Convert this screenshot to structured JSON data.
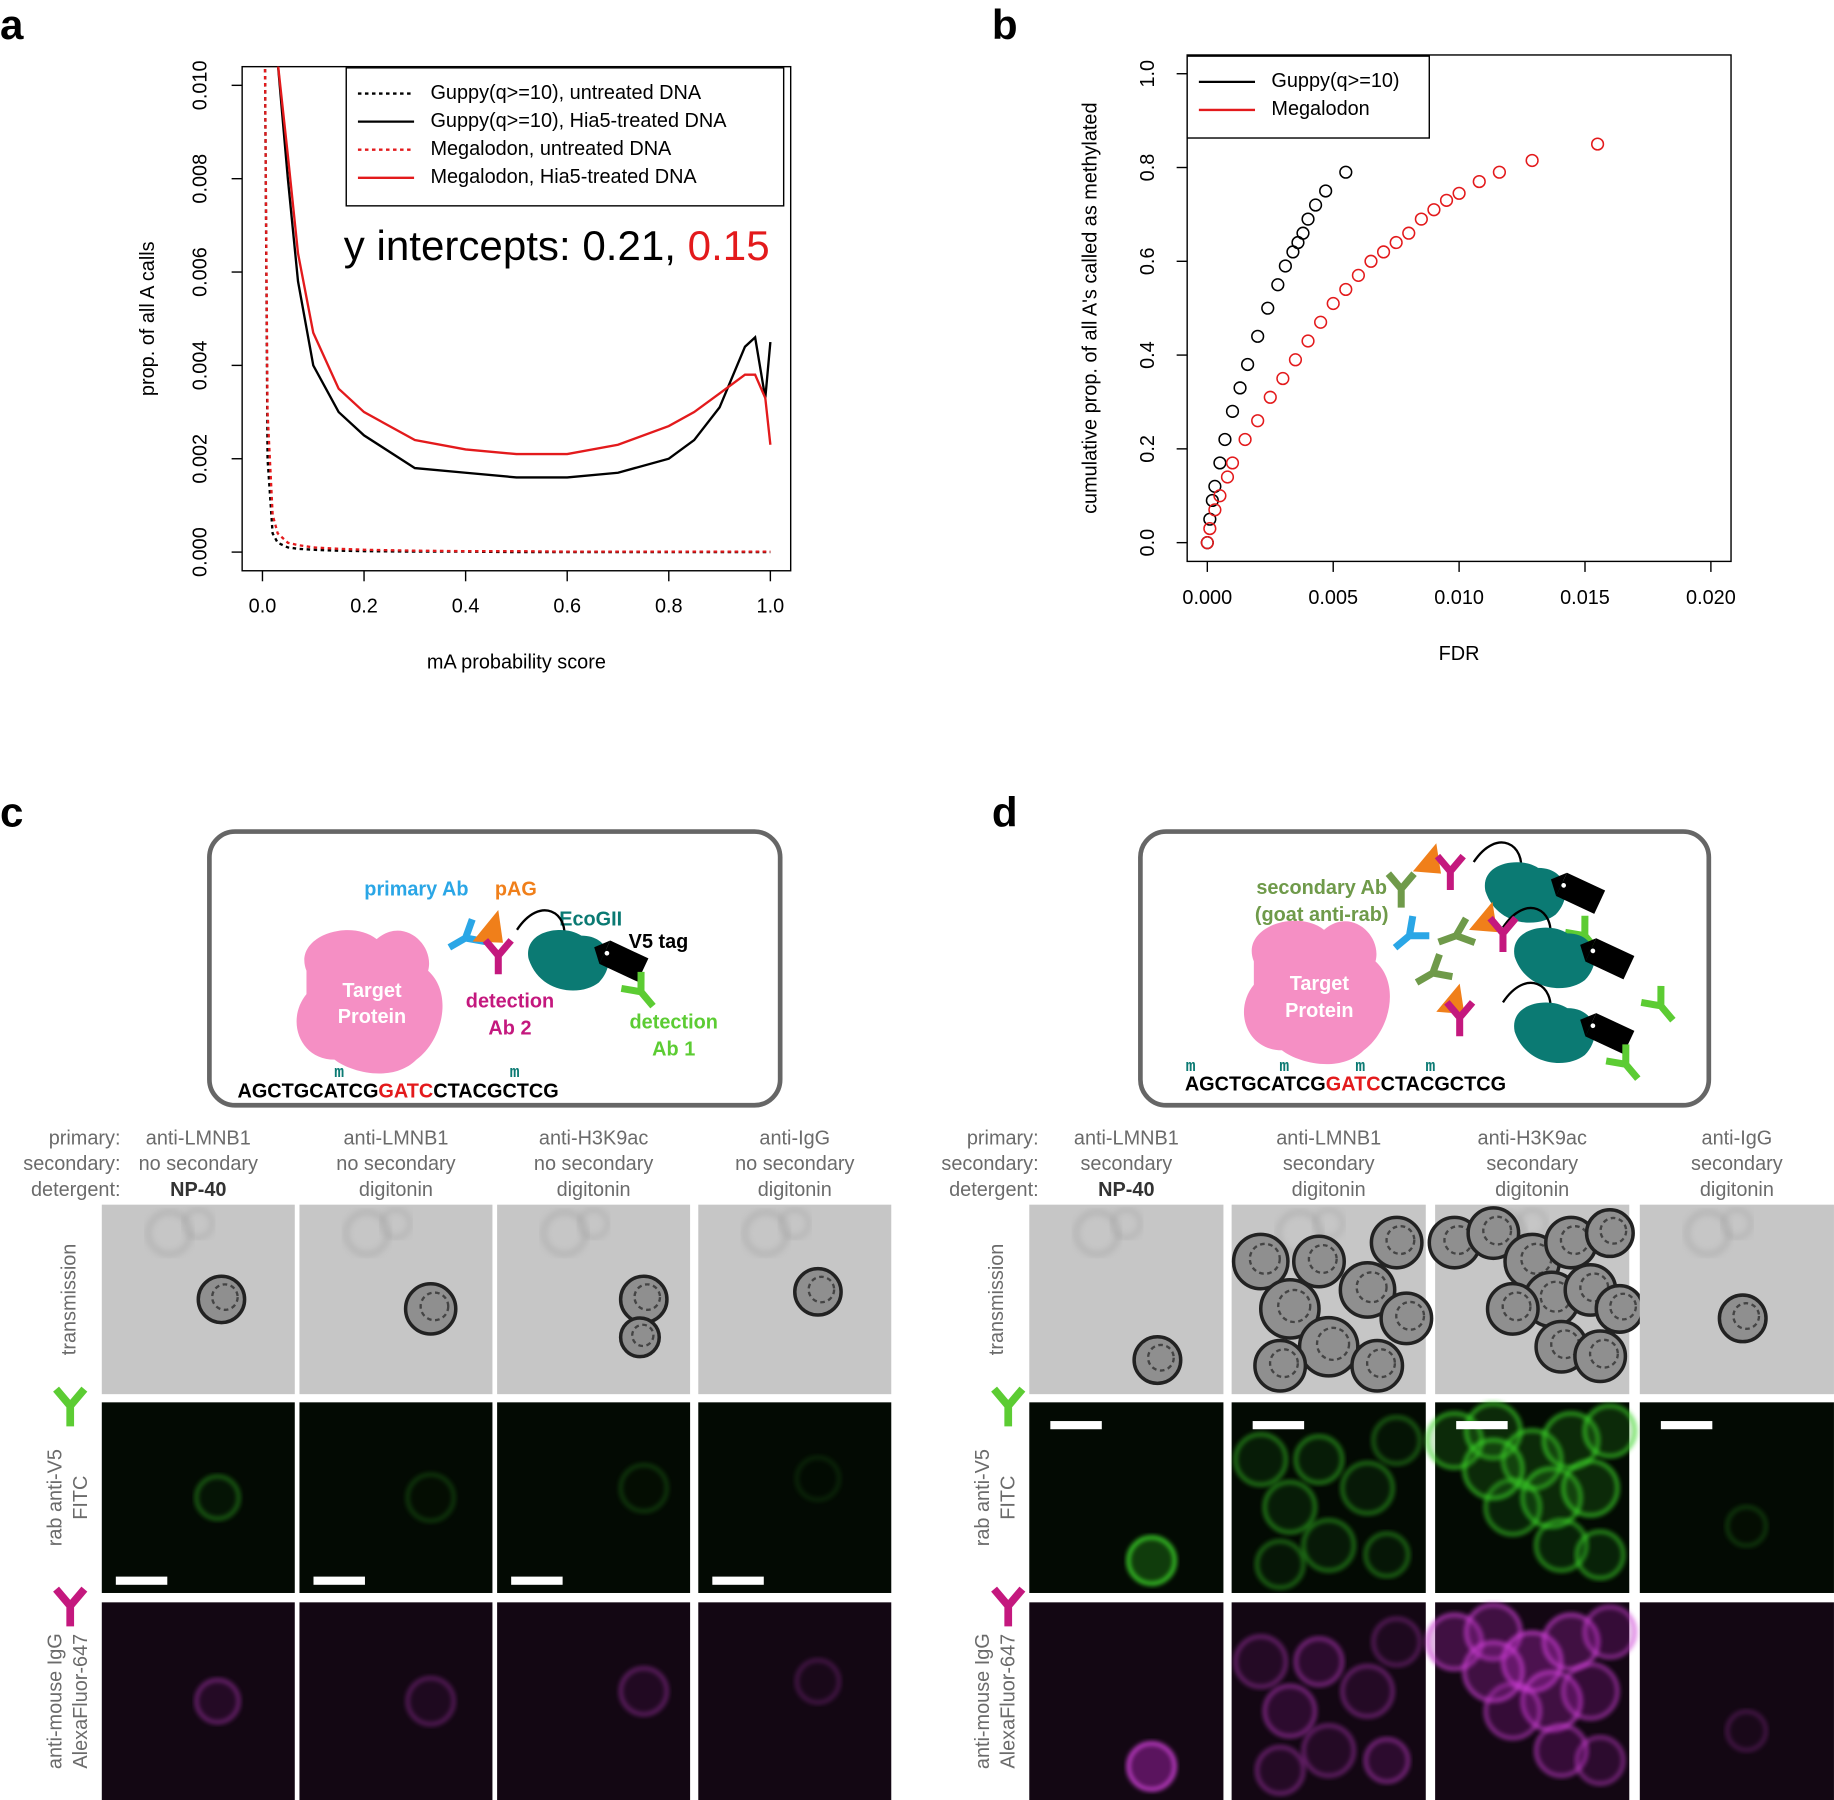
{
  "chart_data": [
    {
      "type": "line",
      "panel_label": "a",
      "xlabel": "mA probability score",
      "ylabel": "prop. of all A calls",
      "x": [
        0.005,
        0.01,
        0.02,
        0.03,
        0.05,
        0.07,
        0.1,
        0.15,
        0.2,
        0.3,
        0.4,
        0.5,
        0.6,
        0.7,
        0.8,
        0.85,
        0.9,
        0.95,
        0.97,
        0.99,
        1.0
      ],
      "xlim": [
        -0.04,
        1.04
      ],
      "xticks": [
        {
          "value": 0,
          "label": "0.0"
        },
        0.2,
        0.4,
        0.6,
        0.8,
        {
          "value": 1,
          "label": "1.0"
        }
      ],
      "ylim": [
        -0.0004,
        0.0104
      ],
      "yticks": [
        {
          "value": 0,
          "label": "0.000"
        },
        0.002,
        0.004,
        0.006,
        0.008,
        {
          "value": 0.01,
          "label": "0.010"
        }
      ],
      "legend": "top-right",
      "series": [
        {
          "name": "Guppy(q>=10), untreated DNA",
          "color": "#000000",
          "linestyle": "dotted",
          "values": [
            0.0105,
            0.002,
            0.0004,
            0.0002,
            0.0001,
            7e-05,
            5e-05,
            3e-05,
            2e-05,
            1e-05,
            1e-05,
            0,
            0,
            0,
            0,
            0,
            0,
            0,
            0,
            0,
            0
          ]
        },
        {
          "name": "Guppy(q>=10), Hia5-treated DNA",
          "color": "#000000",
          "linestyle": "solid",
          "values": [
            null,
            null,
            null,
            0.0105,
            0.008,
            0.0058,
            0.004,
            0.003,
            0.0025,
            0.0018,
            0.0017,
            0.0016,
            0.0016,
            0.0017,
            0.002,
            0.0024,
            0.0031,
            0.0044,
            0.0046,
            0.0033,
            0.0045
          ]
        },
        {
          "name": "Megalodon, untreated DNA",
          "color": "#e31a1c",
          "linestyle": "dotted",
          "values": [
            0.0105,
            0.003,
            0.0008,
            0.0004,
            0.0002,
            0.00015,
            0.0001,
            7e-05,
            5e-05,
            3e-05,
            2e-05,
            2e-05,
            1e-05,
            1e-05,
            1e-05,
            1e-05,
            1e-05,
            1e-05,
            1e-05,
            1e-05,
            1e-05
          ]
        },
        {
          "name": "Megalodon, Hia5-treated DNA",
          "color": "#e31a1c",
          "linestyle": "solid",
          "values": [
            null,
            null,
            null,
            0.0105,
            0.0085,
            0.0064,
            0.0047,
            0.0035,
            0.003,
            0.0024,
            0.0022,
            0.0021,
            0.0021,
            0.0023,
            0.0027,
            0.003,
            0.0034,
            0.0038,
            0.0038,
            0.0033,
            0.0023
          ]
        }
      ],
      "annotation": [
        {
          "text": "y intercepts: 0.21,",
          "color": "#000000"
        },
        {
          "text": "0.15",
          "color": "#e31a1c"
        }
      ]
    },
    {
      "type": "scatter",
      "panel_label": "b",
      "xlabel": "FDR",
      "ylabel": "cumulative prop. of all A's called as methylated",
      "xlim": [
        -0.0008,
        0.0208
      ],
      "xticks": [
        {
          "value": 0,
          "label": "0.000"
        },
        0.005,
        {
          "value": 0.01,
          "label": "0.010"
        },
        0.015,
        {
          "value": 0.02,
          "label": "0.020"
        }
      ],
      "ylim": [
        -0.04,
        1.04
      ],
      "yticks": [
        {
          "value": 0,
          "label": "0.0"
        },
        0.2,
        0.4,
        0.6,
        0.8,
        {
          "value": 1,
          "label": "1.0"
        }
      ],
      "legend": "top-left",
      "series": [
        {
          "name": "Guppy(q>=10)",
          "color": "#000000",
          "x": [
            0,
            0.0001,
            0.0002,
            0.0003,
            0.0005,
            0.0007,
            0.001,
            0.0013,
            0.0016,
            0.002,
            0.0024,
            0.0028,
            0.0031,
            0.0034,
            0.0036,
            0.0038,
            0.004,
            0.0043,
            0.0047,
            0.0055
          ],
          "values": [
            0,
            0.05,
            0.09,
            0.12,
            0.17,
            0.22,
            0.28,
            0.33,
            0.38,
            0.44,
            0.5,
            0.55,
            0.59,
            0.62,
            0.64,
            0.66,
            0.69,
            0.72,
            0.75,
            0.79
          ]
        },
        {
          "name": "Megalodon",
          "color": "#e31a1c",
          "x": [
            0,
            0.0001,
            0.0003,
            0.0005,
            0.0008,
            0.001,
            0.0015,
            0.002,
            0.0025,
            0.003,
            0.0035,
            0.004,
            0.0045,
            0.005,
            0.0055,
            0.006,
            0.0065,
            0.007,
            0.0075,
            0.008,
            0.0085,
            0.009,
            0.0095,
            0.01,
            0.0108,
            0.0116,
            0.0129,
            0.0155
          ],
          "values": [
            0,
            0.03,
            0.07,
            0.1,
            0.14,
            0.17,
            0.22,
            0.26,
            0.31,
            0.35,
            0.39,
            0.43,
            0.47,
            0.51,
            0.54,
            0.57,
            0.6,
            0.62,
            0.64,
            0.66,
            0.69,
            0.71,
            0.73,
            0.745,
            0.77,
            0.79,
            0.815,
            0.85
          ]
        }
      ]
    }
  ],
  "panel_c": {
    "label": "c",
    "diagram": {
      "primary_ab": "primary Ab",
      "pag": "pAG",
      "ecogii": "EcoGII",
      "v5_tag": "V5 tag",
      "target_protein": [
        "Target",
        "Protein"
      ],
      "detection_ab2": [
        "detection",
        "Ab 2"
      ],
      "detection_ab1": [
        "detection",
        "Ab 1"
      ],
      "methyl_mark": "m",
      "sequence": [
        "AGCTGCATCG",
        "GATC",
        "CTACGCTCG"
      ]
    },
    "condition_labels": [
      "primary:",
      "secondary:",
      "detergent:"
    ],
    "columns": [
      [
        "anti-LMNB1",
        "no secondary",
        "NP-40"
      ],
      [
        "anti-LMNB1",
        "no secondary",
        "digitonin"
      ],
      [
        "anti-H3K9ac",
        "no secondary",
        "digitonin"
      ],
      [
        "anti-IgG",
        "no secondary",
        "digitonin"
      ]
    ],
    "row_labels": [
      [
        "transmission"
      ],
      [
        "rab anti-V5",
        "FITC"
      ],
      [
        "anti-mouse IgG",
        "AlexaFluor-647"
      ]
    ]
  },
  "panel_d": {
    "label": "d",
    "diagram": {
      "secondary_ab": [
        "secondary Ab",
        "(goat anti-rab)"
      ],
      "target_protein": [
        "Target",
        "Protein"
      ],
      "methyl_mark": "m",
      "sequence": [
        "AGCTGCATCG",
        "GATC",
        "CTACGCTCG"
      ]
    },
    "condition_labels": [
      "primary:",
      "secondary:",
      "detergent:"
    ],
    "columns": [
      [
        "anti-LMNB1",
        "secondary",
        "NP-40"
      ],
      [
        "anti-LMNB1",
        "secondary",
        "digitonin"
      ],
      [
        "anti-H3K9ac",
        "secondary",
        "digitonin"
      ],
      [
        "anti-IgG",
        "secondary",
        "digitonin"
      ]
    ],
    "row_labels": [
      [
        "transmission"
      ],
      [
        "rab anti-V5",
        "FITC"
      ],
      [
        "anti-mouse IgG",
        "AlexaFluor-647"
      ]
    ]
  }
}
